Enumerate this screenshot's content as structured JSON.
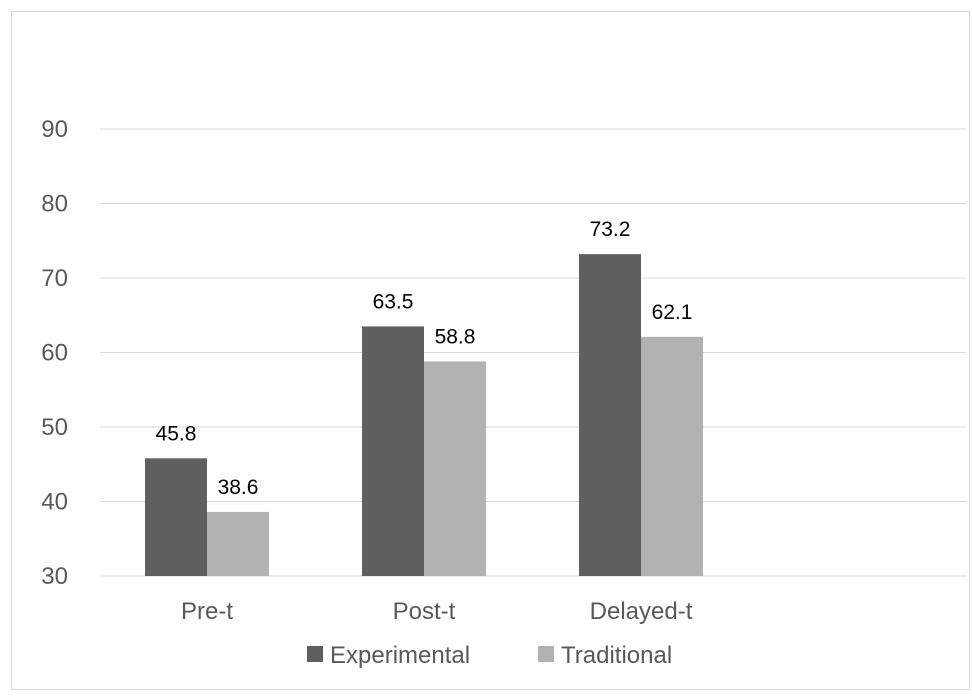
{
  "chart_data": {
    "type": "bar",
    "title": "",
    "xlabel": "",
    "ylabel": "",
    "categories": [
      "Pre-t",
      "Post-t",
      "Delayed-t"
    ],
    "series": [
      {
        "name": "Experimental",
        "values": [
          45.8,
          63.5,
          73.2
        ],
        "color": "#5f5f5f"
      },
      {
        "name": "Traditional",
        "values": [
          38.6,
          58.8,
          62.1
        ],
        "color": "#b2b2b2"
      }
    ],
    "ylim": [
      30,
      90
    ],
    "yticks": [
      30,
      40,
      50,
      60,
      70,
      80,
      90
    ],
    "grid": true,
    "legend": "bottom",
    "data_labels": true
  }
}
